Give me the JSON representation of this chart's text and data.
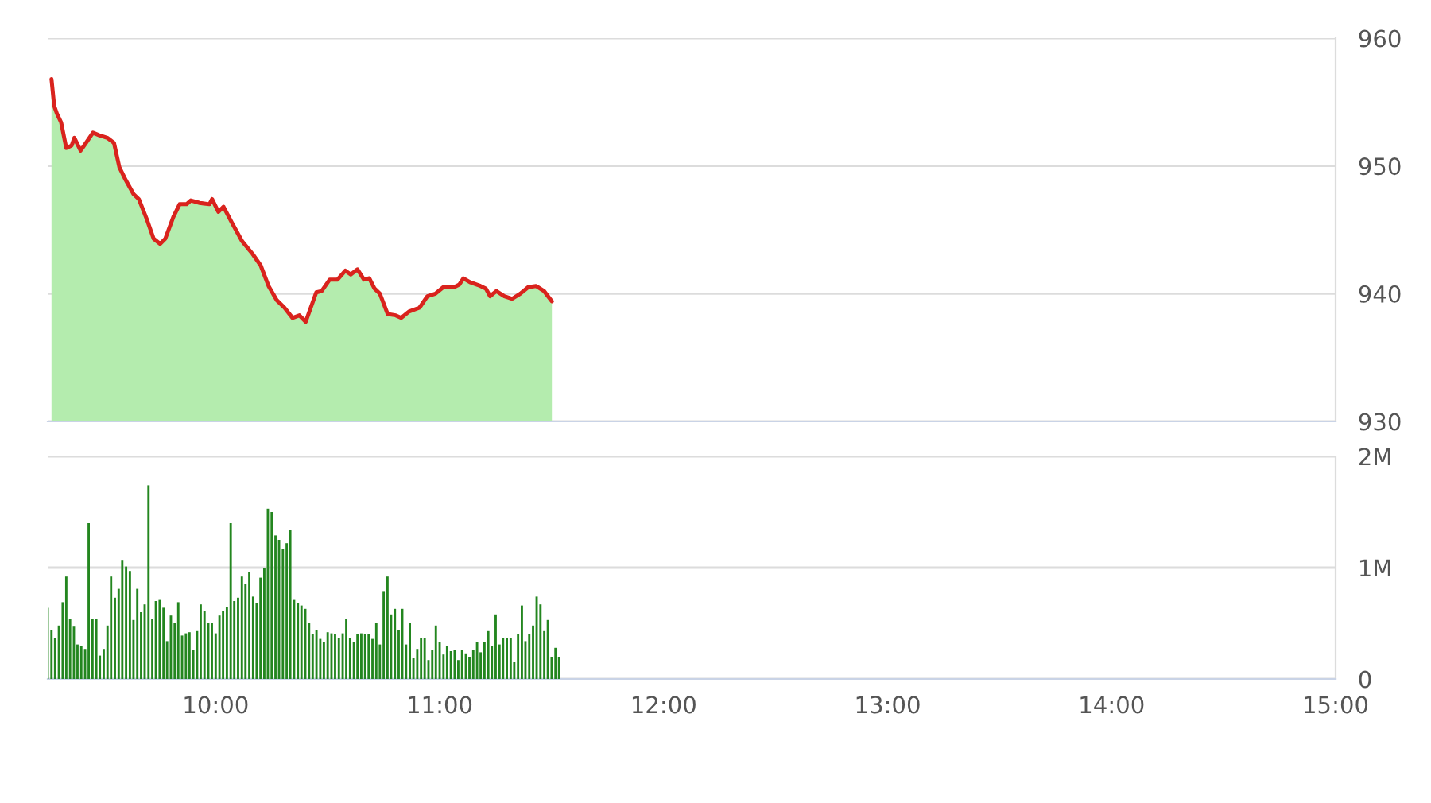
{
  "chart_data": [
    {
      "type": "area",
      "xlim": [
        9.25,
        15
      ],
      "ylim": [
        930,
        960
      ],
      "yticks": [
        930,
        940,
        950,
        960
      ],
      "grid": "y",
      "tick_labels": "y",
      "series": [
        {
          "color": "#b4ecae",
          "x": [
            9.267,
            9.279,
            9.291,
            9.31,
            9.333,
            9.357,
            9.369,
            9.397,
            9.421,
            9.452,
            9.48,
            9.516,
            9.546,
            9.57,
            9.598,
            9.633,
            9.657,
            9.693,
            9.723,
            9.752,
            9.775,
            9.811,
            9.839,
            9.87,
            9.889,
            9.929,
            9.972,
            9.984,
            10.012,
            10.035,
            10.071,
            10.118,
            10.165,
            10.201,
            10.236,
            10.272,
            10.307,
            10.343,
            10.374,
            10.402,
            10.449,
            10.473,
            10.509,
            10.544,
            10.579,
            10.603,
            10.633,
            10.662,
            10.686,
            10.709,
            10.733,
            10.768,
            10.804,
            10.828,
            10.863,
            10.91,
            10.945,
            10.981,
            11.016,
            11.064,
            11.087,
            11.106,
            11.135,
            11.182,
            11.206,
            11.225,
            11.253,
            11.289,
            11.324,
            11.36,
            11.395,
            11.43,
            11.466,
            11.501
          ],
          "values": [
            956.8,
            954.7,
            954.1,
            953.4,
            951.4,
            951.6,
            952.2,
            951.2,
            951.8,
            952.6,
            952.4,
            952.2,
            951.8,
            949.9,
            948.9,
            947.8,
            947.4,
            945.8,
            944.3,
            943.9,
            944.3,
            946.0,
            947.0,
            947.0,
            947.3,
            947.1,
            947.0,
            947.4,
            946.4,
            946.8,
            945.6,
            944.1,
            943.1,
            942.2,
            940.6,
            939.5,
            938.9,
            938.1,
            938.3,
            937.8,
            940.1,
            940.2,
            941.1,
            941.1,
            941.8,
            941.5,
            941.9,
            941.1,
            941.2,
            940.4,
            940.0,
            938.4,
            938.3,
            938.1,
            938.6,
            938.9,
            939.8,
            940.0,
            940.5,
            940.5,
            940.7,
            941.2,
            940.9,
            940.6,
            940.4,
            939.8,
            940.2,
            939.8,
            939.6,
            940.0,
            940.5,
            940.6,
            940.2,
            939.4
          ]
        },
        {
          "type": "line",
          "color": "#d9231d",
          "x": [
            9.267,
            9.279,
            9.291,
            9.31,
            9.333,
            9.357,
            9.369,
            9.397,
            9.421,
            9.452,
            9.48,
            9.516,
            9.546,
            9.57,
            9.598,
            9.633,
            9.657,
            9.693,
            9.723,
            9.752,
            9.775,
            9.811,
            9.839,
            9.87,
            9.889,
            9.929,
            9.972,
            9.984,
            10.012,
            10.035,
            10.071,
            10.118,
            10.165,
            10.201,
            10.236,
            10.272,
            10.307,
            10.343,
            10.374,
            10.402,
            10.449,
            10.473,
            10.509,
            10.544,
            10.579,
            10.603,
            10.633,
            10.662,
            10.686,
            10.709,
            10.733,
            10.768,
            10.804,
            10.828,
            10.863,
            10.91,
            10.945,
            10.981,
            11.016,
            11.064,
            11.087,
            11.106,
            11.135,
            11.182,
            11.206,
            11.225,
            11.253,
            11.289,
            11.324,
            11.36,
            11.395,
            11.43,
            11.466,
            11.501
          ],
          "values": [
            956.8,
            954.7,
            954.1,
            953.4,
            951.4,
            951.6,
            952.2,
            951.2,
            951.8,
            952.6,
            952.4,
            952.2,
            951.8,
            949.9,
            948.9,
            947.8,
            947.4,
            945.8,
            944.3,
            943.9,
            944.3,
            946.0,
            947.0,
            947.0,
            947.3,
            947.1,
            947.0,
            947.4,
            946.4,
            946.8,
            945.6,
            944.1,
            943.1,
            942.2,
            940.6,
            939.5,
            938.9,
            938.1,
            938.3,
            937.8,
            940.1,
            940.2,
            941.1,
            941.1,
            941.8,
            941.5,
            941.9,
            941.1,
            941.2,
            940.4,
            940.0,
            938.4,
            938.3,
            938.1,
            938.6,
            938.9,
            939.8,
            940.0,
            940.5,
            940.5,
            940.7,
            941.2,
            940.9,
            940.6,
            940.4,
            939.8,
            940.2,
            939.8,
            939.6,
            940.0,
            940.5,
            940.6,
            940.2,
            939.4
          ]
        }
      ]
    },
    {
      "type": "bar",
      "xlim": [
        9.25,
        15
      ],
      "ylim": [
        0,
        2
      ],
      "yticks": [
        0,
        {
          "value": 1,
          "label": "1M"
        },
        {
          "value": 2,
          "label": "2M"
        }
      ],
      "grid": "y",
      "xticks": [
        {
          "value": 10,
          "label": "10:00"
        },
        {
          "value": 11,
          "label": "11:00"
        },
        {
          "value": 12,
          "label": "12:00"
        },
        {
          "value": 13,
          "label": "13:00"
        },
        {
          "value": 14,
          "label": "14:00"
        },
        {
          "value": 15,
          "label": "15:00"
        }
      ],
      "series": [
        {
          "color": "#23861f",
          "x": [
            9.25,
            9.267,
            9.283,
            9.3,
            9.317,
            9.333,
            9.35,
            9.367,
            9.383,
            9.4,
            9.417,
            9.433,
            9.45,
            9.467,
            9.483,
            9.5,
            9.517,
            9.533,
            9.55,
            9.567,
            9.583,
            9.6,
            9.617,
            9.633,
            9.65,
            9.667,
            9.683,
            9.7,
            9.717,
            9.733,
            9.75,
            9.767,
            9.783,
            9.8,
            9.817,
            9.833,
            9.85,
            9.867,
            9.883,
            9.9,
            9.917,
            9.933,
            9.95,
            9.967,
            9.983,
            10.0,
            10.017,
            10.033,
            10.05,
            10.067,
            10.083,
            10.1,
            10.117,
            10.133,
            10.15,
            10.167,
            10.183,
            10.2,
            10.217,
            10.233,
            10.25,
            10.267,
            10.283,
            10.3,
            10.317,
            10.333,
            10.35,
            10.367,
            10.383,
            10.4,
            10.417,
            10.433,
            10.45,
            10.467,
            10.483,
            10.5,
            10.517,
            10.533,
            10.55,
            10.567,
            10.583,
            10.6,
            10.617,
            10.633,
            10.65,
            10.667,
            10.683,
            10.7,
            10.717,
            10.733,
            10.75,
            10.767,
            10.783,
            10.8,
            10.817,
            10.833,
            10.85,
            10.867,
            10.883,
            10.9,
            10.917,
            10.933,
            10.95,
            10.967,
            10.983,
            11.0,
            11.017,
            11.033,
            11.05,
            11.067,
            11.083,
            11.1,
            11.117,
            11.133,
            11.15,
            11.167,
            11.183,
            11.2,
            11.217,
            11.233,
            11.25,
            11.267,
            11.283,
            11.3,
            11.317,
            11.333,
            11.35,
            11.367,
            11.383,
            11.4,
            11.417,
            11.433,
            11.45,
            11.467,
            11.483,
            11.5,
            11.517,
            11.533
          ],
          "values": [
            0.64,
            0.44,
            0.37,
            0.48,
            0.69,
            0.92,
            0.54,
            0.47,
            0.31,
            0.3,
            0.27,
            1.4,
            0.54,
            0.54,
            0.21,
            0.27,
            0.48,
            0.92,
            0.73,
            0.81,
            1.07,
            1.01,
            0.97,
            0.53,
            0.81,
            0.6,
            0.67,
            1.74,
            0.54,
            0.7,
            0.71,
            0.64,
            0.34,
            0.57,
            0.5,
            0.69,
            0.39,
            0.41,
            0.42,
            0.26,
            0.43,
            0.67,
            0.61,
            0.5,
            0.5,
            0.41,
            0.57,
            0.61,
            0.65,
            1.4,
            0.7,
            0.73,
            0.92,
            0.85,
            0.96,
            0.74,
            0.68,
            0.91,
            1.0,
            1.53,
            1.5,
            1.29,
            1.25,
            1.17,
            1.22,
            1.34,
            0.71,
            0.68,
            0.66,
            0.63,
            0.5,
            0.4,
            0.44,
            0.36,
            0.33,
            0.42,
            0.41,
            0.4,
            0.37,
            0.41,
            0.54,
            0.37,
            0.33,
            0.4,
            0.41,
            0.4,
            0.4,
            0.36,
            0.5,
            0.31,
            0.79,
            0.92,
            0.58,
            0.63,
            0.44,
            0.63,
            0.31,
            0.5,
            0.19,
            0.27,
            0.37,
            0.37,
            0.17,
            0.26,
            0.48,
            0.33,
            0.22,
            0.3,
            0.25,
            0.26,
            0.17,
            0.26,
            0.23,
            0.2,
            0.26,
            0.33,
            0.24,
            0.33,
            0.43,
            0.3,
            0.58,
            0.31,
            0.37,
            0.37,
            0.37,
            0.15,
            0.4,
            0.66,
            0.34,
            0.4,
            0.48,
            0.74,
            0.67,
            0.43,
            0.53,
            0.2,
            0.28,
            0.2
          ]
        }
      ]
    }
  ]
}
